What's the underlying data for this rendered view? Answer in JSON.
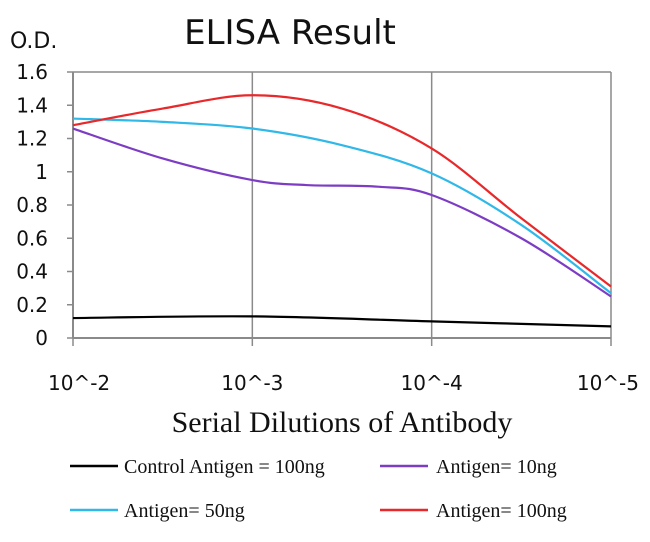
{
  "chart_data": {
    "type": "line",
    "title": "ELISA Result",
    "ylabel": "O.D.",
    "xlabel": "Serial Dilutions of Antibody",
    "categories": [
      "10^-2",
      "10^-3",
      "10^-4",
      "10^-5"
    ],
    "ylim": [
      0,
      1.6
    ],
    "yticks": [
      "0",
      "0.2",
      "0.4",
      "0.6",
      "0.8",
      "1",
      "1.2",
      "1.4",
      "1.6"
    ],
    "grid": "vertical",
    "legend_position": "bottom",
    "series": [
      {
        "name": "Control Antigen = 100ng",
        "color": "#000000",
        "points": [
          [
            0,
            0.12
          ],
          [
            1,
            0.13
          ],
          [
            2,
            0.1
          ],
          [
            3,
            0.07
          ]
        ]
      },
      {
        "name": "Antigen= 10ng",
        "color": "#7d3cc4",
        "points": [
          [
            0,
            1.26
          ],
          [
            0.5,
            1.08
          ],
          [
            1,
            0.95
          ],
          [
            1.3,
            0.92
          ],
          [
            1.7,
            0.91
          ],
          [
            2,
            0.86
          ],
          [
            2.5,
            0.6
          ],
          [
            3,
            0.25
          ]
        ]
      },
      {
        "name": "Antigen= 50ng",
        "color": "#2fb8e8",
        "points": [
          [
            0,
            1.32
          ],
          [
            0.5,
            1.3
          ],
          [
            1,
            1.26
          ],
          [
            1.5,
            1.16
          ],
          [
            2,
            0.99
          ],
          [
            2.5,
            0.68
          ],
          [
            3,
            0.27
          ]
        ]
      },
      {
        "name": "Antigen= 100ng",
        "color": "#e8282a",
        "points": [
          [
            0,
            1.28
          ],
          [
            0.5,
            1.38
          ],
          [
            1,
            1.46
          ],
          [
            1.5,
            1.38
          ],
          [
            2,
            1.14
          ],
          [
            2.5,
            0.72
          ],
          [
            3,
            0.31
          ]
        ]
      }
    ]
  }
}
